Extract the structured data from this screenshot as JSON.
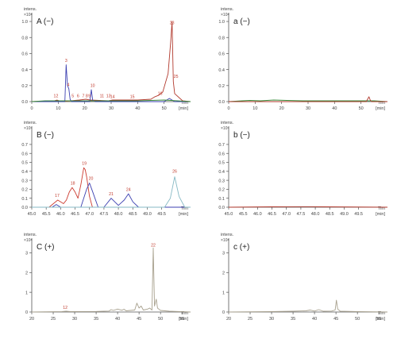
{
  "chart_data": [
    {
      "type": "line",
      "panel_label": "A (−)",
      "y_label": "intens.",
      "y_exponent": "×10⁸",
      "x_label": [
        "Tim",
        "[min]"
      ],
      "xlim": [
        0,
        60
      ],
      "ylim": [
        0,
        1.05
      ],
      "xticks": [
        0,
        10,
        20,
        30,
        40,
        50
      ],
      "yticks": [
        0.0,
        0.2,
        0.4,
        0.6,
        0.8,
        1.0
      ],
      "series": [
        {
          "color": "#b23a2e",
          "x": [
            0,
            8.5,
            9.5,
            10.5,
            11.5,
            18,
            20.5,
            22,
            29,
            30.5,
            40,
            45,
            46.5,
            48,
            49.5,
            51.5,
            52.5,
            53,
            53.5,
            54,
            57,
            60
          ],
          "y": [
            0,
            0.01,
            0.02,
            0.01,
            0,
            0.02,
            0.03,
            0.02,
            0.01,
            0.02,
            0.02,
            0.03,
            0.06,
            0.08,
            0.12,
            0.35,
            0.75,
            1.0,
            0.25,
            0.1,
            0.01,
            0
          ]
        },
        {
          "color": "#3b3fb0",
          "x": [
            0,
            12.5,
            13,
            13.5,
            14,
            14.5,
            15,
            22,
            22.5,
            23,
            24,
            50,
            52,
            53,
            54,
            60
          ],
          "y": [
            0,
            0,
            0.46,
            0.2,
            0.16,
            0.03,
            0,
            0,
            0.15,
            0.02,
            0,
            0,
            0.04,
            0.02,
            0,
            0
          ]
        },
        {
          "color": "#3a8a3a",
          "x": [
            0,
            5,
            10,
            15,
            20,
            30,
            40,
            50,
            60
          ],
          "y": [
            0,
            0.01,
            0.01,
            0.01,
            0.01,
            0.01,
            0.01,
            0.02,
            0
          ]
        }
      ],
      "annotations": [
        {
          "text": "1",
          "x": 8.7,
          "y": 0.04
        },
        {
          "text": "2",
          "x": 9.6,
          "y": 0.04
        },
        {
          "text": "3",
          "x": 13,
          "y": 0.48
        },
        {
          "text": "4",
          "x": 13.8,
          "y": 0.18
        },
        {
          "text": "5",
          "x": 15.5,
          "y": 0.04
        },
        {
          "text": "6",
          "x": 17.5,
          "y": 0.04
        },
        {
          "text": "7",
          "x": 19.5,
          "y": 0.04
        },
        {
          "text": "8",
          "x": 20.8,
          "y": 0.04
        },
        {
          "text": "9",
          "x": 21.8,
          "y": 0.04
        },
        {
          "text": "10",
          "x": 23,
          "y": 0.17
        },
        {
          "text": "11",
          "x": 26.5,
          "y": 0.04
        },
        {
          "text": "13",
          "x": 29,
          "y": 0.04
        },
        {
          "text": "14",
          "x": 30.5,
          "y": 0.03
        },
        {
          "text": "15",
          "x": 38,
          "y": 0.03
        },
        {
          "text": "16",
          "x": 48.5,
          "y": 0.07
        },
        {
          "text": "23",
          "x": 53,
          "y": 0.95
        },
        {
          "text": "25",
          "x": 54.5,
          "y": 0.28
        }
      ]
    },
    {
      "type": "line",
      "panel_label": "a (−)",
      "y_label": "intens.",
      "y_exponent": "×10⁸",
      "x_label": [
        "Tim",
        "[min]"
      ],
      "xlim": [
        0,
        60
      ],
      "ylim": [
        0,
        1.05
      ],
      "xticks": [
        0,
        10,
        20,
        30,
        40,
        50
      ],
      "yticks": [
        0.0,
        0.2,
        0.4,
        0.6,
        0.8,
        1.0
      ],
      "series": [
        {
          "color": "#3a8a3a",
          "x": [
            0,
            5,
            8,
            12,
            17,
            22,
            28,
            35,
            45,
            55,
            60
          ],
          "y": [
            0,
            0.01,
            0.015,
            0.01,
            0.02,
            0.015,
            0.01,
            0.01,
            0.01,
            0.01,
            0
          ]
        },
        {
          "color": "#b23a2e",
          "x": [
            0,
            52,
            53,
            53.5,
            54,
            60
          ],
          "y": [
            0,
            0,
            0.06,
            0.02,
            0,
            0
          ]
        }
      ],
      "annotations": []
    },
    {
      "type": "line",
      "panel_label": "B (−)",
      "y_label": "intens.",
      "y_exponent": "×10⁷",
      "x_label": [
        "Tim",
        "[min]"
      ],
      "xlim": [
        45,
        50.5
      ],
      "ylim": [
        0,
        0.85
      ],
      "xticks": [
        45.0,
        45.5,
        46.0,
        46.5,
        47.0,
        47.5,
        48.0,
        48.5,
        49.0,
        49.5
      ],
      "yticks": [
        0.0,
        0.1,
        0.2,
        0.3,
        0.4,
        0.5,
        0.6,
        0.7
      ],
      "series": [
        {
          "color": "#cc3b30",
          "x": [
            45,
            45.6,
            45.9,
            46.1,
            46.2,
            46.3,
            46.4,
            46.5,
            46.6,
            46.7,
            46.8,
            46.85,
            46.9,
            47.0,
            47.1,
            50.5
          ],
          "y": [
            0,
            0,
            0.08,
            0.04,
            0.08,
            0.17,
            0.22,
            0.17,
            0.1,
            0.25,
            0.44,
            0.42,
            0.34,
            0.12,
            0,
            0
          ]
        },
        {
          "color": "#3b3fb0",
          "x": [
            45,
            45.7,
            45.85,
            46,
            46.7,
            46.9,
            47.0,
            47.1,
            47.3,
            47.5,
            47.75,
            48.0,
            48.2,
            48.35,
            48.5,
            48.7,
            50.5
          ],
          "y": [
            0,
            0,
            0.03,
            0,
            0,
            0.2,
            0.27,
            0.18,
            0,
            0,
            0.1,
            0.02,
            0.08,
            0.15,
            0.06,
            0,
            0
          ]
        },
        {
          "color": "#86b9c4",
          "x": [
            45,
            49.6,
            49.8,
            49.95,
            50.1,
            50.3,
            50.5
          ],
          "y": [
            0,
            0,
            0.1,
            0.34,
            0.12,
            0,
            0
          ]
        }
      ],
      "annotations": [
        {
          "text": "17",
          "x": 45.88,
          "y": 0.1
        },
        {
          "text": "18",
          "x": 46.42,
          "y": 0.24
        },
        {
          "text": "19",
          "x": 46.82,
          "y": 0.46
        },
        {
          "text": "20",
          "x": 47.05,
          "y": 0.29
        },
        {
          "text": "21",
          "x": 47.75,
          "y": 0.12
        },
        {
          "text": "24",
          "x": 48.35,
          "y": 0.17
        },
        {
          "text": "26",
          "x": 49.95,
          "y": 0.37
        }
      ]
    },
    {
      "type": "line",
      "panel_label": "b (−)",
      "y_label": "intens.",
      "y_exponent": "×10⁷",
      "x_label": [
        "Tim",
        "[min]"
      ],
      "xlim": [
        45,
        50.5
      ],
      "ylim": [
        0,
        0.85
      ],
      "xticks": [
        45.0,
        45.5,
        46.0,
        46.5,
        47.0,
        47.5,
        48.0,
        48.5,
        49.0,
        49.5
      ],
      "yticks": [
        0.0,
        0.1,
        0.2,
        0.3,
        0.4,
        0.5,
        0.6,
        0.7
      ],
      "series": [
        {
          "color": "#b23a2e",
          "x": [
            45,
            46.5,
            47,
            47.8,
            48.3,
            50.5
          ],
          "y": [
            0,
            0.004,
            0.005,
            0.006,
            0.004,
            0
          ]
        }
      ],
      "annotations": []
    },
    {
      "type": "line",
      "panel_label": "C (+)",
      "y_label": "intens.",
      "y_exponent": "×10⁸",
      "x_label": [
        "Tim",
        "[min]"
      ],
      "xlim": [
        20,
        57
      ],
      "ylim": [
        0,
        3.5
      ],
      "xticks": [
        20,
        25,
        30,
        35,
        40,
        45,
        50,
        55
      ],
      "yticks": [
        0,
        1,
        2,
        3
      ],
      "series": [
        {
          "color": "#a8a18e",
          "x": [
            20,
            27,
            28,
            29,
            35,
            38,
            38.5,
            39,
            40,
            41,
            41.5,
            42,
            44,
            44.5,
            45,
            45.5,
            46,
            47,
            47.5,
            48,
            48.3,
            48.6,
            49,
            49.3,
            49.6,
            50,
            52,
            57
          ],
          "y": [
            0,
            0.02,
            0.04,
            0.02,
            0.03,
            0.05,
            0.12,
            0.08,
            0.15,
            0.09,
            0.14,
            0.06,
            0.1,
            0.45,
            0.2,
            0.3,
            0.1,
            0.15,
            0.2,
            0.1,
            3.25,
            0.3,
            0.65,
            0.2,
            0.15,
            0.08,
            0.04,
            0
          ]
        }
      ],
      "annotations": [
        {
          "text": "12",
          "x": 27.8,
          "y": 0.1
        },
        {
          "text": "22",
          "x": 48.3,
          "y": 3.25
        }
      ]
    },
    {
      "type": "line",
      "panel_label": "c (+)",
      "y_label": "intens.",
      "y_exponent": "×10⁸",
      "x_label": [
        "Tim",
        "[min]"
      ],
      "xlim": [
        20,
        57
      ],
      "ylim": [
        0,
        3.5
      ],
      "xticks": [
        20,
        25,
        30,
        35,
        40,
        45,
        50,
        55
      ],
      "yticks": [
        0,
        1,
        2,
        3
      ],
      "series": [
        {
          "color": "#a8a18e",
          "x": [
            20,
            30,
            35,
            38,
            39,
            40,
            41,
            42,
            44,
            44.8,
            45.1,
            45.4,
            46,
            50,
            57
          ],
          "y": [
            0,
            0.02,
            0.04,
            0.06,
            0.1,
            0.05,
            0.12,
            0.04,
            0.05,
            0.1,
            0.6,
            0.15,
            0.04,
            0.02,
            0
          ]
        }
      ],
      "annotations": []
    }
  ]
}
